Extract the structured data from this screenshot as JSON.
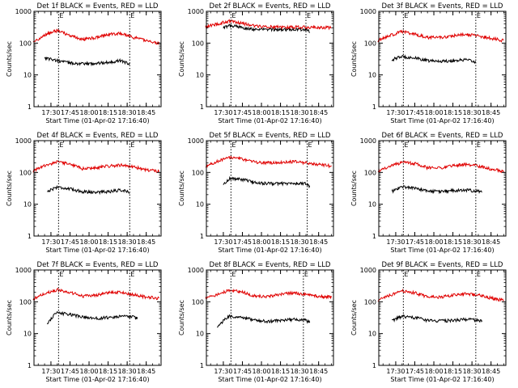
{
  "chart_data": [
    {
      "type": "line",
      "title": "Det 1f BLACK = Events, RED = LLD",
      "xlabel": "Start Time (01-Apr-02 17:16:40)",
      "ylabel": "Counts/sec",
      "yscale": "log",
      "ylim": [
        1,
        1000
      ],
      "y_ticks": [
        "1",
        "10",
        "100",
        "1000"
      ],
      "x_ticks": [
        "17:30",
        "17:45",
        "18:00",
        "18:15",
        "18:30",
        "18:45"
      ],
      "xlim": [
        "17:16:40",
        "18:56:40"
      ],
      "event_markers": [
        {
          "time": "17:36",
          "label": "E"
        },
        {
          "time": "18:32",
          "label": "E"
        }
      ],
      "colors": {
        "events": "#000000",
        "lld": "#e00000"
      },
      "series": [
        {
          "name": "Events",
          "x": [
            "17:25",
            "17:35",
            "17:45",
            "17:55",
            "18:05",
            "18:15",
            "18:25",
            "18:32"
          ],
          "values": [
            35,
            28,
            24,
            22,
            23,
            25,
            28,
            22
          ]
        },
        {
          "name": "LLD",
          "x": [
            "17:16",
            "17:25",
            "17:35",
            "17:45",
            "17:55",
            "18:05",
            "18:15",
            "18:25",
            "18:35",
            "18:45",
            "18:55"
          ],
          "values": [
            100,
            180,
            250,
            170,
            130,
            150,
            190,
            200,
            150,
            120,
            100
          ]
        }
      ]
    },
    {
      "type": "line",
      "title": "Det 2f BLACK = Events, RED = LLD",
      "xlabel": "Start Time (01-Apr-02 17:16:40)",
      "ylabel": "Counts/sec",
      "yscale": "log",
      "ylim": [
        1,
        1000
      ],
      "y_ticks": [
        "1",
        "10",
        "100",
        "1000"
      ],
      "x_ticks": [
        "17:30",
        "17:45",
        "18:00",
        "18:15",
        "18:30",
        "18:45"
      ],
      "xlim": [
        "17:16:40",
        "18:56:40"
      ],
      "event_markers": [
        {
          "time": "17:36",
          "label": "E"
        },
        {
          "time": "18:35",
          "label": "E"
        }
      ],
      "colors": {
        "events": "#000000",
        "lld": "#e00000"
      },
      "series": [
        {
          "name": "Events",
          "x": [
            "17:30",
            "17:35",
            "17:45",
            "17:55",
            "18:05",
            "18:15",
            "18:25",
            "18:35",
            "18:38"
          ],
          "values": [
            300,
            360,
            310,
            270,
            270,
            270,
            270,
            270,
            230
          ]
        },
        {
          "name": "LLD",
          "x": [
            "17:16",
            "17:25",
            "17:35",
            "17:45",
            "17:55",
            "18:05",
            "18:15",
            "18:25",
            "18:35",
            "18:45",
            "18:55"
          ],
          "values": [
            320,
            400,
            500,
            420,
            350,
            330,
            320,
            320,
            320,
            310,
            310
          ]
        }
      ]
    },
    {
      "type": "line",
      "title": "Det 3f BLACK = Events, RED = LLD",
      "xlabel": "Start Time (01-Apr-02 17:16:40)",
      "ylabel": "Counts/sec",
      "yscale": "log",
      "ylim": [
        1,
        1000
      ],
      "y_ticks": [
        "1",
        "10",
        "100",
        "1000"
      ],
      "x_ticks": [
        "17:30",
        "17:45",
        "18:00",
        "18:15",
        "18:30",
        "18:45"
      ],
      "xlim": [
        "17:16:40",
        "18:56:40"
      ],
      "event_markers": [
        {
          "time": "17:36",
          "label": "E"
        },
        {
          "time": "18:33",
          "label": "E"
        }
      ],
      "colors": {
        "events": "#000000",
        "lld": "#e00000"
      },
      "series": [
        {
          "name": "Events",
          "x": [
            "17:27",
            "17:35",
            "17:45",
            "17:55",
            "18:05",
            "18:15",
            "18:25",
            "18:33"
          ],
          "values": [
            30,
            38,
            34,
            28,
            27,
            28,
            30,
            25
          ]
        },
        {
          "name": "LLD",
          "x": [
            "17:16",
            "17:25",
            "17:35",
            "17:45",
            "17:55",
            "18:05",
            "18:15",
            "18:25",
            "18:35",
            "18:45",
            "18:55"
          ],
          "values": [
            120,
            170,
            230,
            190,
            150,
            150,
            170,
            190,
            170,
            140,
            120
          ]
        }
      ]
    },
    {
      "type": "line",
      "title": "Det 4f BLACK = Events, RED = LLD",
      "xlabel": "Start Time (01-Apr-02 17:16:40)",
      "ylabel": "Counts/sec",
      "yscale": "log",
      "ylim": [
        1,
        1000
      ],
      "y_ticks": [
        "1",
        "10",
        "100",
        "1000"
      ],
      "x_ticks": [
        "17:30",
        "17:45",
        "18:00",
        "18:15",
        "18:30",
        "18:45"
      ],
      "xlim": [
        "17:16:40",
        "18:56:40"
      ],
      "event_markers": [
        {
          "time": "17:36",
          "label": "E"
        },
        {
          "time": "18:32",
          "label": "E"
        }
      ],
      "colors": {
        "events": "#000000",
        "lld": "#e00000"
      },
      "series": [
        {
          "name": "Events",
          "x": [
            "17:27",
            "17:35",
            "17:45",
            "17:55",
            "18:05",
            "18:15",
            "18:25",
            "18:32"
          ],
          "values": [
            25,
            35,
            30,
            25,
            24,
            25,
            28,
            24
          ]
        },
        {
          "name": "LLD",
          "x": [
            "17:16",
            "17:25",
            "17:35",
            "17:45",
            "17:55",
            "18:05",
            "18:15",
            "18:25",
            "18:35",
            "18:45",
            "18:55"
          ],
          "values": [
            110,
            160,
            220,
            180,
            130,
            140,
            160,
            170,
            150,
            120,
            110
          ]
        }
      ]
    },
    {
      "type": "line",
      "title": "Det 5f BLACK = Events, RED = LLD",
      "xlabel": "Start Time (01-Apr-02 17:16:40)",
      "ylabel": "Counts/sec",
      "yscale": "log",
      "ylim": [
        1,
        1000
      ],
      "y_ticks": [
        "1",
        "10",
        "100",
        "1000"
      ],
      "x_ticks": [
        "17:30",
        "17:45",
        "18:00",
        "18:15",
        "18:30",
        "18:45"
      ],
      "xlim": [
        "17:16:40",
        "18:56:40"
      ],
      "event_markers": [
        {
          "time": "17:36",
          "label": "E"
        },
        {
          "time": "18:36",
          "label": "E"
        }
      ],
      "colors": {
        "events": "#000000",
        "lld": "#e00000"
      },
      "series": [
        {
          "name": "Events",
          "x": [
            "17:30",
            "17:35",
            "17:45",
            "17:55",
            "18:05",
            "18:15",
            "18:25",
            "18:35",
            "18:38"
          ],
          "values": [
            40,
            65,
            60,
            48,
            45,
            45,
            45,
            45,
            35
          ]
        },
        {
          "name": "LLD",
          "x": [
            "17:16",
            "17:25",
            "17:35",
            "17:45",
            "17:55",
            "18:05",
            "18:15",
            "18:25",
            "18:35",
            "18:45",
            "18:55"
          ],
          "values": [
            160,
            220,
            300,
            260,
            210,
            200,
            210,
            220,
            200,
            180,
            160
          ]
        }
      ]
    },
    {
      "type": "line",
      "title": "Det 6f BLACK = Events, RED = LLD",
      "xlabel": "Start Time (01-Apr-02 17:16:40)",
      "ylabel": "Counts/sec",
      "yscale": "log",
      "ylim": [
        1,
        1000
      ],
      "y_ticks": [
        "1",
        "10",
        "100",
        "1000"
      ],
      "x_ticks": [
        "17:30",
        "17:45",
        "18:00",
        "18:15",
        "18:30",
        "18:45"
      ],
      "xlim": [
        "17:16:40",
        "18:56:40"
      ],
      "event_markers": [
        {
          "time": "17:36",
          "label": "E"
        },
        {
          "time": "18:33",
          "label": "E"
        }
      ],
      "colors": {
        "events": "#000000",
        "lld": "#e00000"
      },
      "series": [
        {
          "name": "Events",
          "x": [
            "17:27",
            "17:35",
            "17:45",
            "17:55",
            "18:05",
            "18:15",
            "18:25",
            "18:35",
            "18:38"
          ],
          "values": [
            25,
            36,
            32,
            26,
            25,
            27,
            28,
            26,
            24
          ]
        },
        {
          "name": "LLD",
          "x": [
            "17:16",
            "17:25",
            "17:35",
            "17:45",
            "17:55",
            "18:05",
            "18:15",
            "18:25",
            "18:35",
            "18:45",
            "18:55"
          ],
          "values": [
            110,
            150,
            210,
            190,
            140,
            140,
            160,
            180,
            160,
            130,
            110
          ]
        }
      ]
    },
    {
      "type": "line",
      "title": "Det 7f BLACK = Events, RED = LLD",
      "xlabel": "Start Time (01-Apr-02 17:16:40)",
      "ylabel": "Counts/sec",
      "yscale": "log",
      "ylim": [
        1,
        1000
      ],
      "y_ticks": [
        "1",
        "10",
        "100",
        "1000"
      ],
      "x_ticks": [
        "17:30",
        "17:45",
        "18:00",
        "18:15",
        "18:30",
        "18:45"
      ],
      "xlim": [
        "17:16:40",
        "18:56:40"
      ],
      "event_markers": [
        {
          "time": "17:36",
          "label": "E"
        },
        {
          "time": "18:32",
          "label": "E"
        }
      ],
      "colors": {
        "events": "#000000",
        "lld": "#e00000"
      },
      "series": [
        {
          "name": "Events",
          "x": [
            "17:27",
            "17:35",
            "17:45",
            "17:55",
            "18:05",
            "18:15",
            "18:25",
            "18:35",
            "18:38"
          ],
          "values": [
            20,
            45,
            40,
            33,
            30,
            32,
            35,
            33,
            30
          ]
        },
        {
          "name": "LLD",
          "x": [
            "17:16",
            "17:25",
            "17:35",
            "17:45",
            "17:55",
            "18:05",
            "18:15",
            "18:25",
            "18:35",
            "18:45",
            "18:55"
          ],
          "values": [
            120,
            180,
            240,
            200,
            150,
            160,
            190,
            200,
            170,
            140,
            130
          ]
        }
      ]
    },
    {
      "type": "line",
      "title": "Det 8f BLACK = Events, RED = LLD",
      "xlabel": "Start Time (01-Apr-02 17:16:40)",
      "ylabel": "Counts/sec",
      "yscale": "log",
      "ylim": [
        1,
        1000
      ],
      "y_ticks": [
        "1",
        "10",
        "100",
        "1000"
      ],
      "x_ticks": [
        "17:30",
        "17:45",
        "18:00",
        "18:15",
        "18:30",
        "18:45"
      ],
      "xlim": [
        "17:16:40",
        "18:56:40"
      ],
      "event_markers": [
        {
          "time": "17:36",
          "label": "E"
        },
        {
          "time": "18:33",
          "label": "E"
        }
      ],
      "colors": {
        "events": "#000000",
        "lld": "#e00000"
      },
      "series": [
        {
          "name": "Events",
          "x": [
            "17:25",
            "17:35",
            "17:45",
            "17:55",
            "18:05",
            "18:15",
            "18:25",
            "18:35",
            "18:38"
          ],
          "values": [
            15,
            35,
            32,
            26,
            24,
            26,
            28,
            26,
            22
          ]
        },
        {
          "name": "LLD",
          "x": [
            "17:16",
            "17:25",
            "17:35",
            "17:45",
            "17:55",
            "18:05",
            "18:15",
            "18:25",
            "18:35",
            "18:45",
            "18:55"
          ],
          "values": [
            130,
            170,
            230,
            200,
            150,
            150,
            170,
            190,
            170,
            150,
            140
          ]
        }
      ]
    },
    {
      "type": "line",
      "title": "Det 9f BLACK = Events, RED = LLD",
      "xlabel": "Start Time (01-Apr-02 17:16:40)",
      "ylabel": "Counts/sec",
      "yscale": "log",
      "ylim": [
        1,
        1000
      ],
      "y_ticks": [
        "1",
        "10",
        "100",
        "1000"
      ],
      "x_ticks": [
        "17:30",
        "17:45",
        "18:00",
        "18:15",
        "18:30",
        "18:45"
      ],
      "xlim": [
        "17:16:40",
        "18:56:40"
      ],
      "event_markers": [
        {
          "time": "17:36",
          "label": "E"
        },
        {
          "time": "18:33",
          "label": "E"
        }
      ],
      "colors": {
        "events": "#000000",
        "lld": "#e00000"
      },
      "series": [
        {
          "name": "Events",
          "x": [
            "17:27",
            "17:35",
            "17:45",
            "17:55",
            "18:05",
            "18:15",
            "18:25",
            "18:35",
            "18:38"
          ],
          "values": [
            25,
            35,
            32,
            26,
            25,
            26,
            28,
            26,
            24
          ]
        },
        {
          "name": "LLD",
          "x": [
            "17:16",
            "17:25",
            "17:35",
            "17:45",
            "17:55",
            "18:05",
            "18:15",
            "18:25",
            "18:35",
            "18:45",
            "18:55"
          ],
          "values": [
            110,
            160,
            220,
            190,
            140,
            140,
            160,
            180,
            160,
            130,
            110
          ]
        }
      ]
    }
  ]
}
